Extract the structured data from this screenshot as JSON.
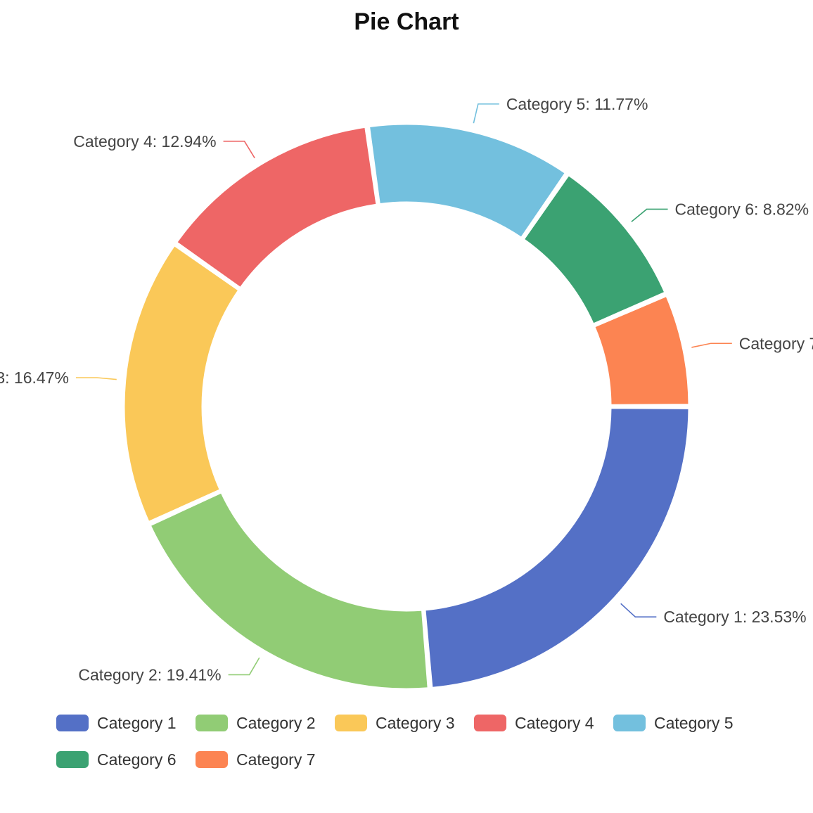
{
  "chart_data": {
    "type": "pie",
    "title": "Pie Chart",
    "donut": true,
    "legend_position": "bottom-left",
    "slices": [
      {
        "name": "Category 1",
        "percent": 23.53,
        "label": "Category 1: 23.53%",
        "color": "#5470c6"
      },
      {
        "name": "Category 2",
        "percent": 19.41,
        "label": "Category 2: 19.41%",
        "color": "#91cc75"
      },
      {
        "name": "Category 3",
        "percent": 16.47,
        "label": "3: 16.47%",
        "color": "#fac858"
      },
      {
        "name": "Category 4",
        "percent": 12.94,
        "label": "Category 4: 12.94%",
        "color": "#ee6666"
      },
      {
        "name": "Category 5",
        "percent": 11.77,
        "label": "Category 5: 11.77%",
        "color": "#73c0de"
      },
      {
        "name": "Category 6",
        "percent": 8.82,
        "label": "Category 6: 8.82%",
        "color": "#3ba272"
      },
      {
        "name": "Category 7",
        "percent": 6.47,
        "label": "Category 7",
        "color": "#fc8452"
      }
    ]
  }
}
